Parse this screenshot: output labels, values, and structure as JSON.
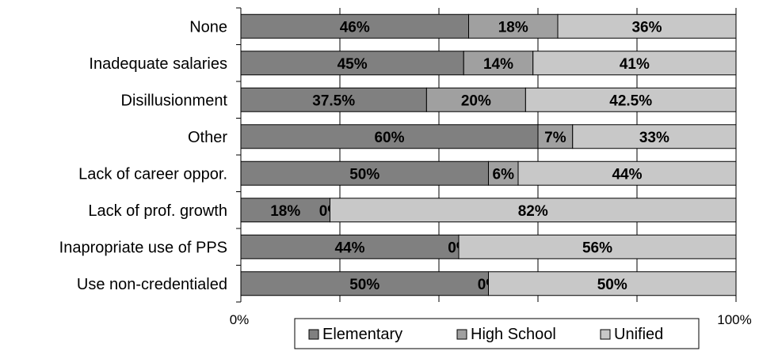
{
  "chart_data": {
    "type": "bar",
    "orientation": "horizontal",
    "stacked": true,
    "percent": true,
    "categories": [
      "None",
      "Inadequate salaries",
      "Disillusionment",
      "Other",
      "Lack of career oppor.",
      "Lack of prof. growth",
      "Inapropriate use of PPS",
      "Use non-credentialed"
    ],
    "series": [
      {
        "name": "Elementary",
        "color": "#808080",
        "values": [
          46,
          45,
          37.5,
          60,
          50,
          18,
          44,
          50
        ],
        "labels": [
          "46%",
          "45%",
          "37.5%",
          "60%",
          "50%",
          "18%",
          "44%",
          "50%"
        ]
      },
      {
        "name": "High School",
        "color": "#a0a0a0",
        "values": [
          18,
          14,
          20,
          7,
          6,
          0,
          0,
          0
        ],
        "labels": [
          "18%",
          "14%",
          "20%",
          "7%",
          "6%",
          "0%",
          "0%",
          "0%"
        ]
      },
      {
        "name": "Unified",
        "color": "#c8c8c8",
        "values": [
          36,
          41,
          42.5,
          33,
          44,
          82,
          56,
          50
        ],
        "labels": [
          "36%",
          "41%",
          "42.5%",
          "33%",
          "44%",
          "82%",
          "56%",
          "50%"
        ]
      }
    ],
    "xlim": [
      0,
      100
    ],
    "x_ticks": [
      "0%",
      "100%"
    ],
    "grid": "vertical",
    "legend_position": "bottom"
  }
}
